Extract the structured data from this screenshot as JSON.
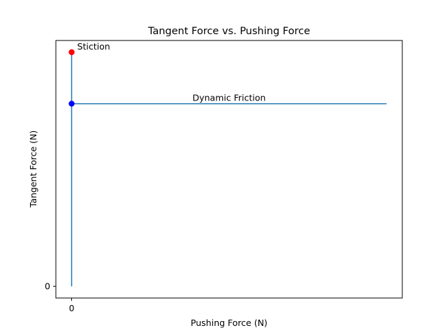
{
  "chart_data": {
    "type": "line",
    "title": "Tangent Force vs. Pushing Force",
    "xlabel": "Pushing Force (N)",
    "ylabel": "Tangent Force (N)",
    "x_ticks": [
      0
    ],
    "y_ticks": [
      0
    ],
    "grid": false,
    "series": [
      {
        "color": "#1f77b4",
        "x": [
          0,
          0,
          0,
          1
        ],
        "y": [
          0,
          1.0,
          0.78,
          0.78
        ]
      }
    ],
    "points": [
      {
        "x": 0,
        "y": 1.0,
        "color": "#ff0000"
      },
      {
        "x": 0,
        "y": 0.78,
        "color": "#0000ff"
      }
    ],
    "annotations": [
      {
        "text": "Stiction",
        "x": 0,
        "y": 1.0
      },
      {
        "text": "Dynamic Friction",
        "x": 0.5,
        "y": 0.78
      }
    ],
    "xlim": [
      -0.05,
      1.05
    ],
    "ylim": [
      -0.05,
      1.05
    ]
  }
}
